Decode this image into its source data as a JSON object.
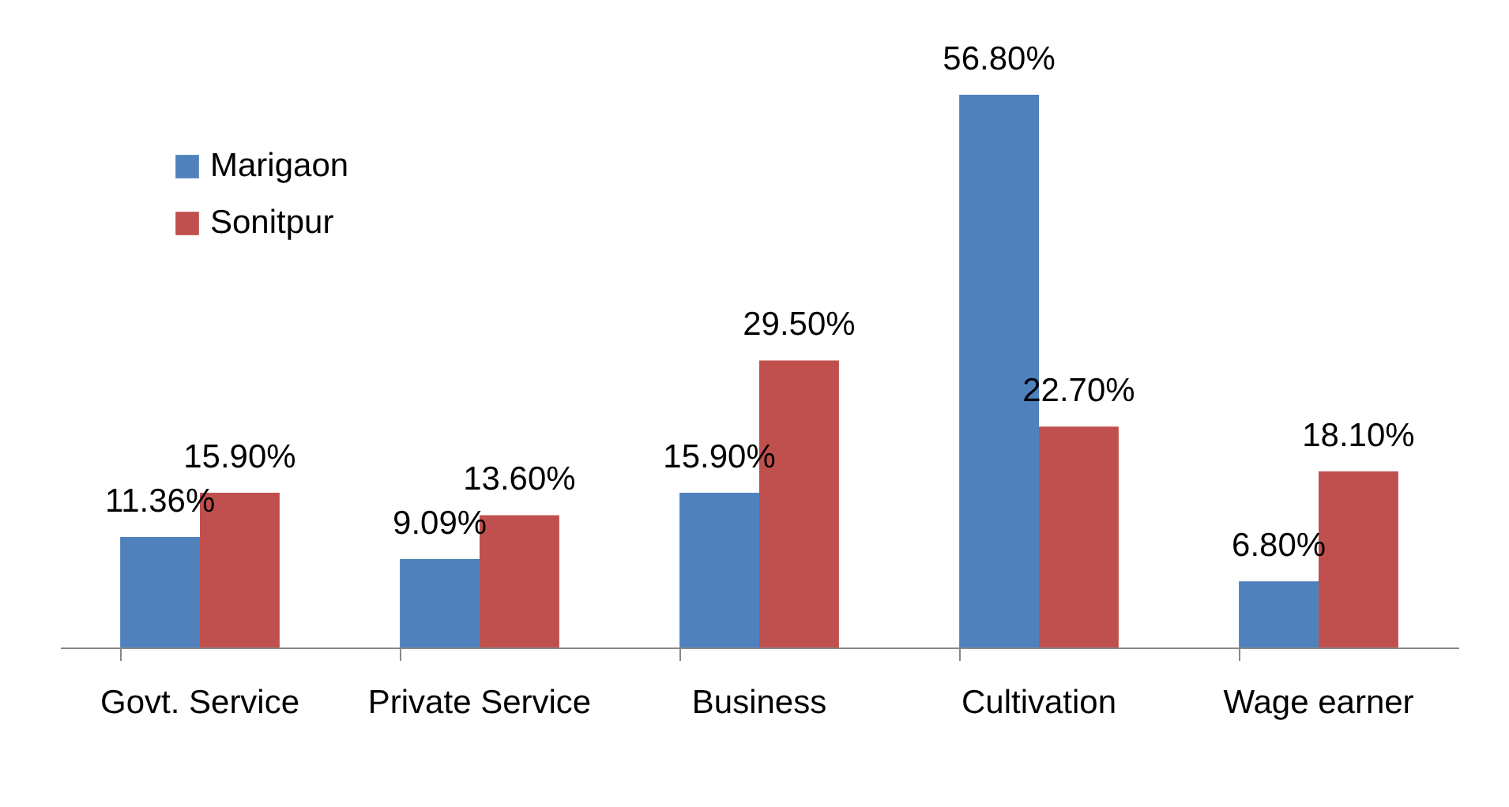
{
  "chart_data": {
    "type": "bar",
    "categories": [
      "Govt. Service",
      "Private Service",
      "Business",
      "Cultivation",
      "Wage earner"
    ],
    "series": [
      {
        "name": "Marigaon",
        "color": "#4f81bd",
        "values": [
          11.36,
          9.09,
          15.9,
          56.8,
          6.8
        ],
        "value_labels": [
          "11.36%",
          "9.09%",
          "15.90%",
          "56.80%",
          "6.80%"
        ]
      },
      {
        "name": "Sonitpur",
        "color": "#c0504d",
        "values": [
          15.9,
          13.6,
          29.5,
          22.7,
          18.1
        ],
        "value_labels": [
          "15.90%",
          "13.60%",
          "29.50%",
          "22.70%",
          "18.10%"
        ]
      }
    ],
    "grid": false,
    "legend": "top left",
    "tick_labels": "x"
  }
}
